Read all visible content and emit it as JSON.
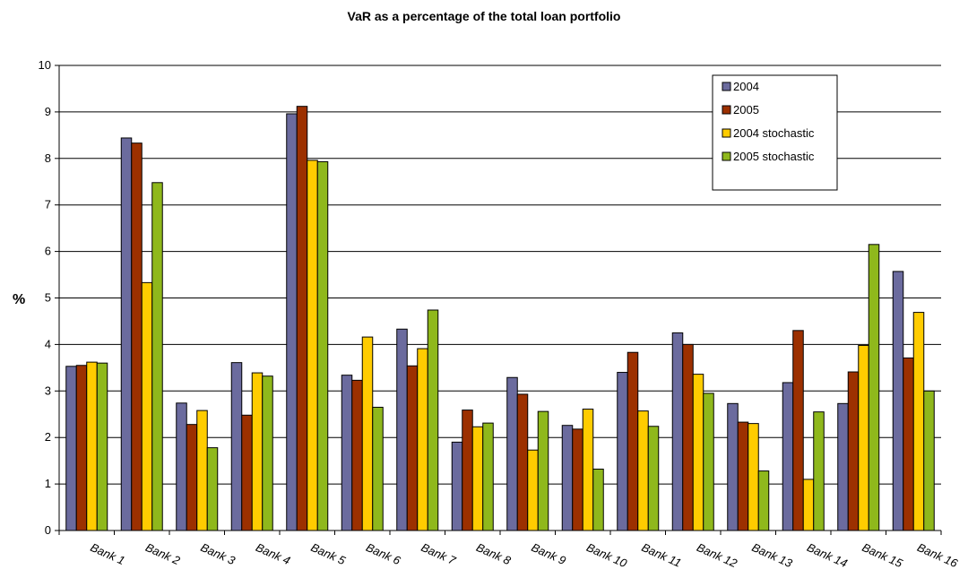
{
  "chart_data": {
    "type": "bar",
    "title": "VaR as a percentage of the total loan portfolio",
    "xlabel": "",
    "ylabel": "%",
    "ylim": [
      0,
      10
    ],
    "yticks": [
      0,
      1,
      2,
      3,
      4,
      5,
      6,
      7,
      8,
      9,
      10
    ],
    "grid": true,
    "legend_position": "top-right",
    "categories": [
      "Bank 1",
      "Bank 2",
      "Bank 3",
      "Bank 4",
      "Bank 5",
      "Bank 6",
      "Bank 7",
      "Bank 8",
      "Bank 9",
      "Bank 10",
      "Bank 11",
      "Bank 12",
      "Bank 13",
      "Bank 14",
      "Bank 15",
      "Bank 16"
    ],
    "series": [
      {
        "name": "2004",
        "color": "#6b6b9e",
        "values": [
          3.53,
          8.44,
          2.74,
          3.61,
          8.96,
          3.34,
          4.33,
          1.9,
          3.29,
          2.26,
          3.4,
          4.25,
          2.73,
          3.18,
          2.73,
          5.57
        ]
      },
      {
        "name": "2005",
        "color": "#9c3000",
        "values": [
          3.55,
          8.33,
          2.28,
          2.48,
          9.12,
          3.23,
          3.54,
          2.59,
          2.93,
          2.18,
          3.83,
          4.0,
          2.33,
          4.3,
          3.41,
          3.71
        ]
      },
      {
        "name": "2004 stochastic",
        "color": "#ffcc00",
        "values": [
          3.62,
          5.33,
          2.58,
          3.39,
          7.96,
          4.16,
          3.91,
          2.23,
          1.73,
          2.61,
          2.57,
          3.36,
          2.3,
          1.1,
          3.98,
          4.69
        ]
      },
      {
        "name": "2005 stochastic",
        "color": "#8fb81c",
        "values": [
          3.6,
          7.48,
          1.78,
          3.32,
          7.93,
          2.65,
          4.74,
          2.31,
          2.56,
          1.32,
          2.24,
          2.95,
          1.28,
          2.55,
          6.15,
          3.0
        ]
      }
    ]
  }
}
